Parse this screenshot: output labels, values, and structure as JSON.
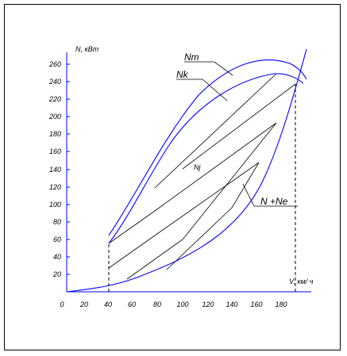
{
  "axes": {
    "y_label": "N, кВт",
    "x_label": "V, км/ ч",
    "y_ticks": [
      "20",
      "40",
      "60",
      "80",
      "100",
      "120",
      "140",
      "160",
      "180",
      "200",
      "220",
      "240",
      "260"
    ],
    "x_ticks": [
      "0",
      "20",
      "40",
      "60",
      "80",
      "100",
      "120",
      "140",
      "160",
      "180"
    ]
  },
  "curve_labels": {
    "nm": "Nm",
    "nk": "Nk",
    "nj": "Nj",
    "nsum": "N  +Ne"
  },
  "colors": {
    "axis": "#0000ff",
    "curve": "#0000ff",
    "hatch": "#000000",
    "guide": "#000000"
  }
}
